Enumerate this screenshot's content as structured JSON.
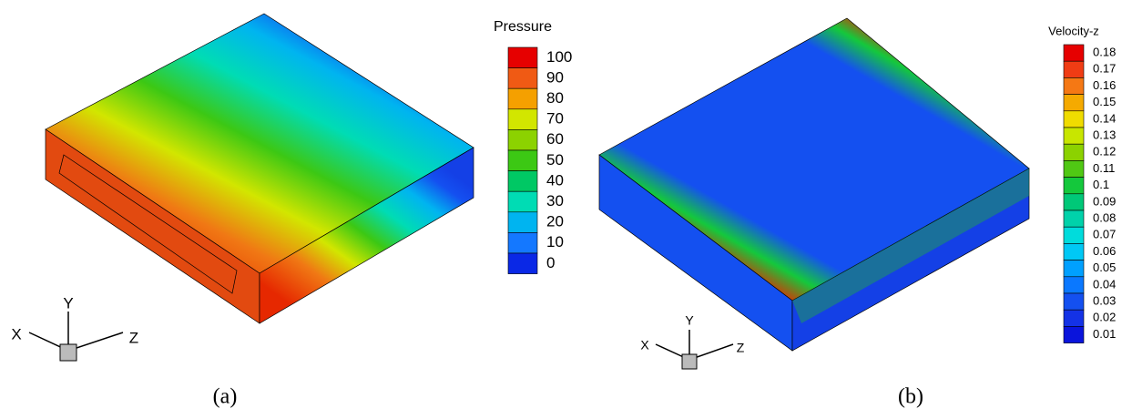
{
  "figure": {
    "panels": [
      {
        "caption": "(a)",
        "axes": {
          "x": "X",
          "y": "Y",
          "z": "Z"
        },
        "legend": {
          "title": "Pressure",
          "levels": [
            100,
            90,
            80,
            70,
            60,
            50,
            40,
            30,
            20,
            10,
            0
          ],
          "colors": [
            "#e60000",
            "#f05a14",
            "#f5a000",
            "#d2e600",
            "#8cd200",
            "#3cc814",
            "#00c864",
            "#00dcb4",
            "#00b4f0",
            "#1478ff",
            "#0a28e6"
          ]
        }
      },
      {
        "caption": "(b)",
        "axes": {
          "x": "X",
          "y": "Y",
          "z": "Z"
        },
        "legend": {
          "title": "Velocity-z",
          "levels": [
            0.18,
            0.17,
            0.16,
            0.15,
            0.14,
            0.13,
            0.12,
            0.11,
            0.1,
            0.09,
            0.08,
            0.07,
            0.06,
            0.05,
            0.04,
            0.03,
            0.02,
            0.01
          ],
          "colors": [
            "#e60000",
            "#f03c14",
            "#f57814",
            "#f5aa00",
            "#f0dc00",
            "#c8e600",
            "#8cd200",
            "#50c814",
            "#14c83c",
            "#00c878",
            "#00d2aa",
            "#00dcdc",
            "#00c8f5",
            "#00a0ff",
            "#0a78ff",
            "#1450f0",
            "#1432e6",
            "#0a14dc"
          ]
        }
      }
    ]
  }
}
